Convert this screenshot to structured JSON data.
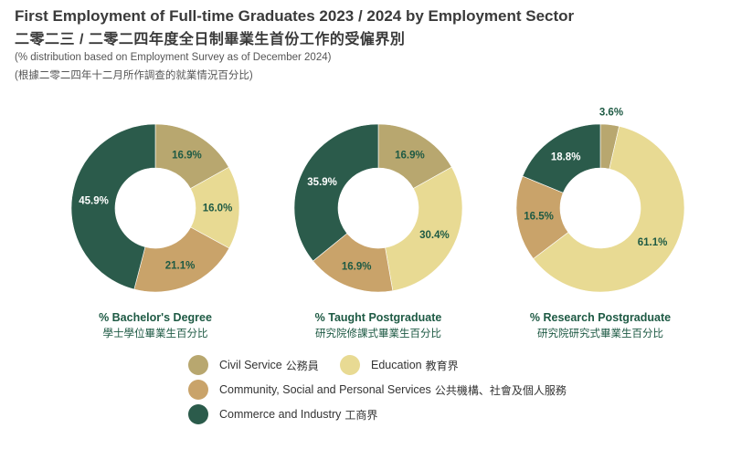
{
  "header": {
    "title_en": "First Employment of Full-time Graduates 2023 / 2024 by Employment Sector",
    "title_zh": "二零二三 / 二零二四年度全日制畢業生首份工作的受僱界別",
    "subtitle_en": "(% distribution based on Employment Survey as of December 2024)",
    "subtitle_zh": "(根據二零二四年十二月所作調查的就業情況百分比)"
  },
  "colors": {
    "civil_service": "#b8a76f",
    "education": "#e8da93",
    "community": "#c9a36a",
    "commerce": "#2b5b4b",
    "label_green": "#1e5a44"
  },
  "legend": [
    {
      "key": "civil_service",
      "label": "Civil Service",
      "label_zh": "公務員"
    },
    {
      "key": "education",
      "label": "Education",
      "label_zh": "教育界"
    },
    {
      "key": "community",
      "label": "Community, Social and Personal Services",
      "label_zh": "公共機構、社會及個人服務"
    },
    {
      "key": "commerce",
      "label": "Commerce and Industry",
      "label_zh": "工商界"
    }
  ],
  "chart_data": [
    {
      "type": "pie",
      "title": "% Bachelor's Degree",
      "title_zh": "學士學位畢業生百分比",
      "categories": [
        "Civil Service",
        "Education",
        "Community, Social and Personal Services",
        "Commerce and Industry"
      ],
      "values": [
        16.9,
        16.0,
        21.1,
        45.9
      ],
      "labels": [
        "16.9%",
        "16.0%",
        "21.1%",
        "45.9%"
      ]
    },
    {
      "type": "pie",
      "title": "% Taught Postgraduate",
      "title_zh": "研究院修課式畢業生百分比",
      "categories": [
        "Civil Service",
        "Education",
        "Community, Social and Personal Services",
        "Commerce and Industry"
      ],
      "values": [
        16.9,
        30.4,
        16.9,
        35.9
      ],
      "labels": [
        "16.9%",
        "30.4%",
        "16.9%",
        "35.9%"
      ]
    },
    {
      "type": "pie",
      "title": "% Research Postgraduate",
      "title_zh": "研究院研究式畢業生百分比",
      "categories": [
        "Civil Service",
        "Education",
        "Community, Social and Personal Services",
        "Commerce and Industry"
      ],
      "values": [
        3.6,
        61.1,
        16.5,
        18.8
      ],
      "labels": [
        "3.6%",
        "61.1%",
        "16.5%",
        "18.8%"
      ]
    }
  ]
}
